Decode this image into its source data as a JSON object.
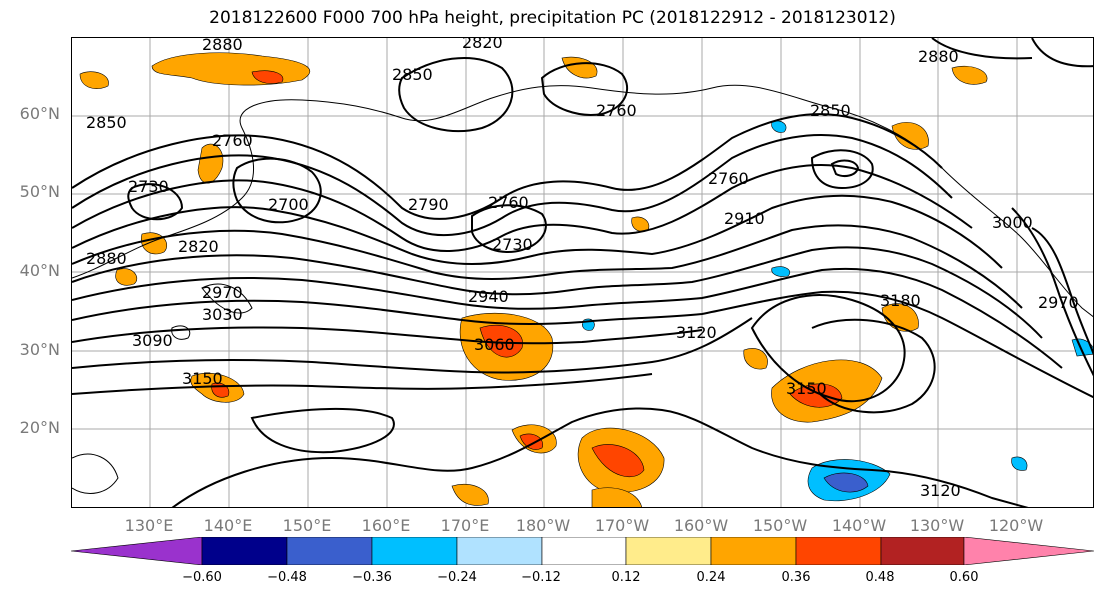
{
  "title": "2018122600 F000 700 hPa height, precipitation PC (2018122912 - 2018123012)",
  "lat_labels": [
    "60°N",
    "50°N",
    "40°N",
    "30°N",
    "20°N"
  ],
  "lon_labels": [
    "130°E",
    "140°E",
    "150°E",
    "160°E",
    "170°E",
    "180°W",
    "170°W",
    "160°W",
    "150°W",
    "140°W",
    "130°W",
    "120°W"
  ],
  "contour_labels": [
    "2880",
    "2850",
    "2820",
    "2850",
    "2760",
    "2880",
    "2850",
    "2760",
    "2730",
    "2700",
    "2790",
    "2760",
    "2760",
    "2730",
    "2910",
    "2880",
    "2820",
    "2970",
    "2940",
    "3030",
    "3060",
    "3090",
    "3120",
    "3180",
    "3150",
    "3150",
    "3120",
    "3000",
    "2970"
  ],
  "colorbar": {
    "ticks": [
      "−0.60",
      "−0.48",
      "−0.36",
      "−0.24",
      "−0.12",
      "0.12",
      "0.24",
      "0.36",
      "0.48",
      "0.60"
    ],
    "colors": [
      "#9a32cd",
      "#00008b",
      "#3a5fcd",
      "#00bfff",
      "#b0e2ff",
      "#ffffff",
      "#ffec8b",
      "#ffa500",
      "#ff4500",
      "#b22222",
      "#ff82ab"
    ]
  }
}
